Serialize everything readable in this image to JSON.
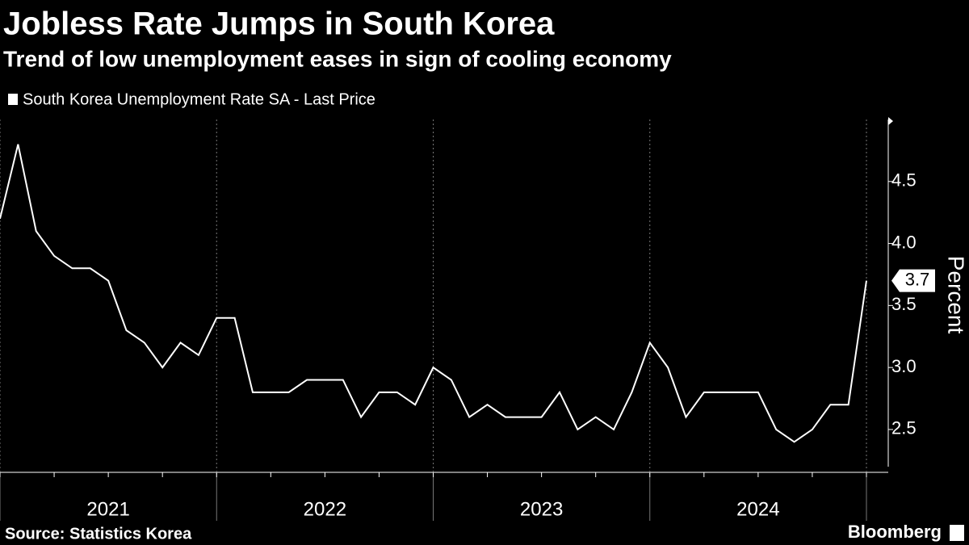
{
  "chart_data": {
    "type": "line",
    "title": "Jobless Rate Jumps in South Korea",
    "subtitle": "Trend of low unemployment eases in sign of cooling economy",
    "y_label": "Percent",
    "source": "Source: Statistics Korea",
    "brand": "Bloomberg",
    "x_labels": [
      "2021",
      "2022",
      "2023",
      "2024"
    ],
    "series": [
      {
        "name": "South Korea Unemployment Rate SA - Last Price",
        "color": "#ffffff",
        "values": [
          4.2,
          4.8,
          4.1,
          3.9,
          3.8,
          3.8,
          3.7,
          3.3,
          3.2,
          3.0,
          3.2,
          3.1,
          3.4,
          3.4,
          2.8,
          2.8,
          2.8,
          2.9,
          2.9,
          2.9,
          2.6,
          2.8,
          2.8,
          2.7,
          3.0,
          2.9,
          2.6,
          2.7,
          2.6,
          2.6,
          2.6,
          2.8,
          2.5,
          2.6,
          2.5,
          2.8,
          3.2,
          3.0,
          2.6,
          2.8,
          2.8,
          2.8,
          2.8,
          2.5,
          2.4,
          2.5,
          2.7,
          2.7,
          3.7
        ]
      }
    ],
    "ylim": [
      2.2,
      5.0
    ],
    "yticks": [
      2.5,
      {
        "value": 3,
        "label": "3.0"
      },
      3.5,
      {
        "value": 4,
        "label": "4.0"
      },
      4.5
    ],
    "grid": true
  }
}
